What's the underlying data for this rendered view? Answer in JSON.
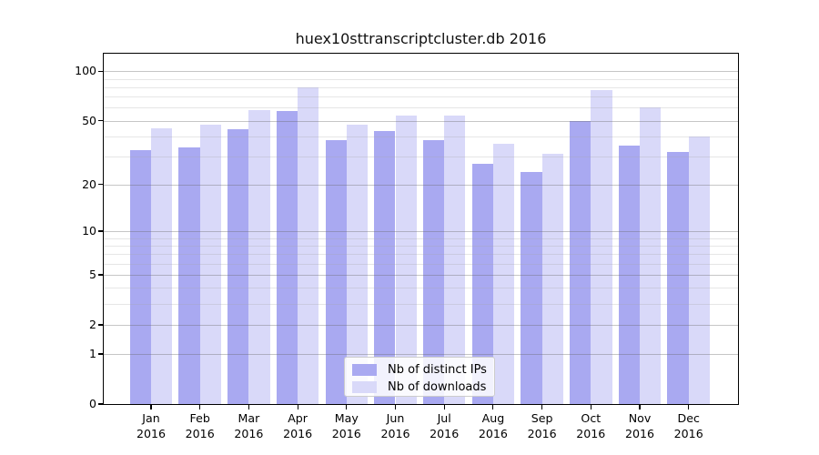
{
  "title": "huex10sttranscriptcluster.db 2016",
  "chart_data": {
    "type": "bar",
    "title": "huex10sttranscriptcluster.db 2016",
    "categories": [
      "Jan 2016",
      "Feb 2016",
      "Mar 2016",
      "Apr 2016",
      "May 2016",
      "Jun 2016",
      "Jul 2016",
      "Aug 2016",
      "Sep 2016",
      "Oct 2016",
      "Nov 2016",
      "Dec 2016"
    ],
    "x_tick_month_labels": [
      "Jan",
      "Feb",
      "Mar",
      "Apr",
      "May",
      "Jun",
      "Jul",
      "Aug",
      "Sep",
      "Oct",
      "Nov",
      "Dec"
    ],
    "x_tick_year_label": "2016",
    "series": [
      {
        "name": "Nb of distinct IPs",
        "color": "#a9a9f1",
        "values": [
          33,
          34,
          44,
          57,
          38,
          43,
          38,
          27,
          24,
          50,
          35,
          32
        ]
      },
      {
        "name": "Nb of downloads",
        "color": "#d9d9f9",
        "values": [
          45,
          47,
          58,
          80,
          47,
          54,
          54,
          36,
          31,
          77,
          60,
          40
        ]
      }
    ],
    "y_axis": {
      "scale": "log10(1+x)",
      "ticks": [
        0,
        1,
        2,
        5,
        10,
        20,
        50,
        100
      ],
      "minor_gridlines": [
        3,
        4,
        6,
        7,
        8,
        9,
        30,
        40,
        60,
        70,
        80,
        90
      ],
      "range": [
        0,
        128
      ]
    },
    "xlabel": "",
    "ylabel": "",
    "grid": true,
    "legend_position": "lower center",
    "colors": {
      "grid_major": "rgba(105,105,105,0.38)",
      "grid_minor": "rgba(165,165,165,0.28)",
      "spine": "#000000",
      "background": "#ffffff"
    }
  },
  "legend": {
    "items": [
      {
        "label": "Nb of distinct IPs"
      },
      {
        "label": "Nb of downloads"
      }
    ]
  }
}
